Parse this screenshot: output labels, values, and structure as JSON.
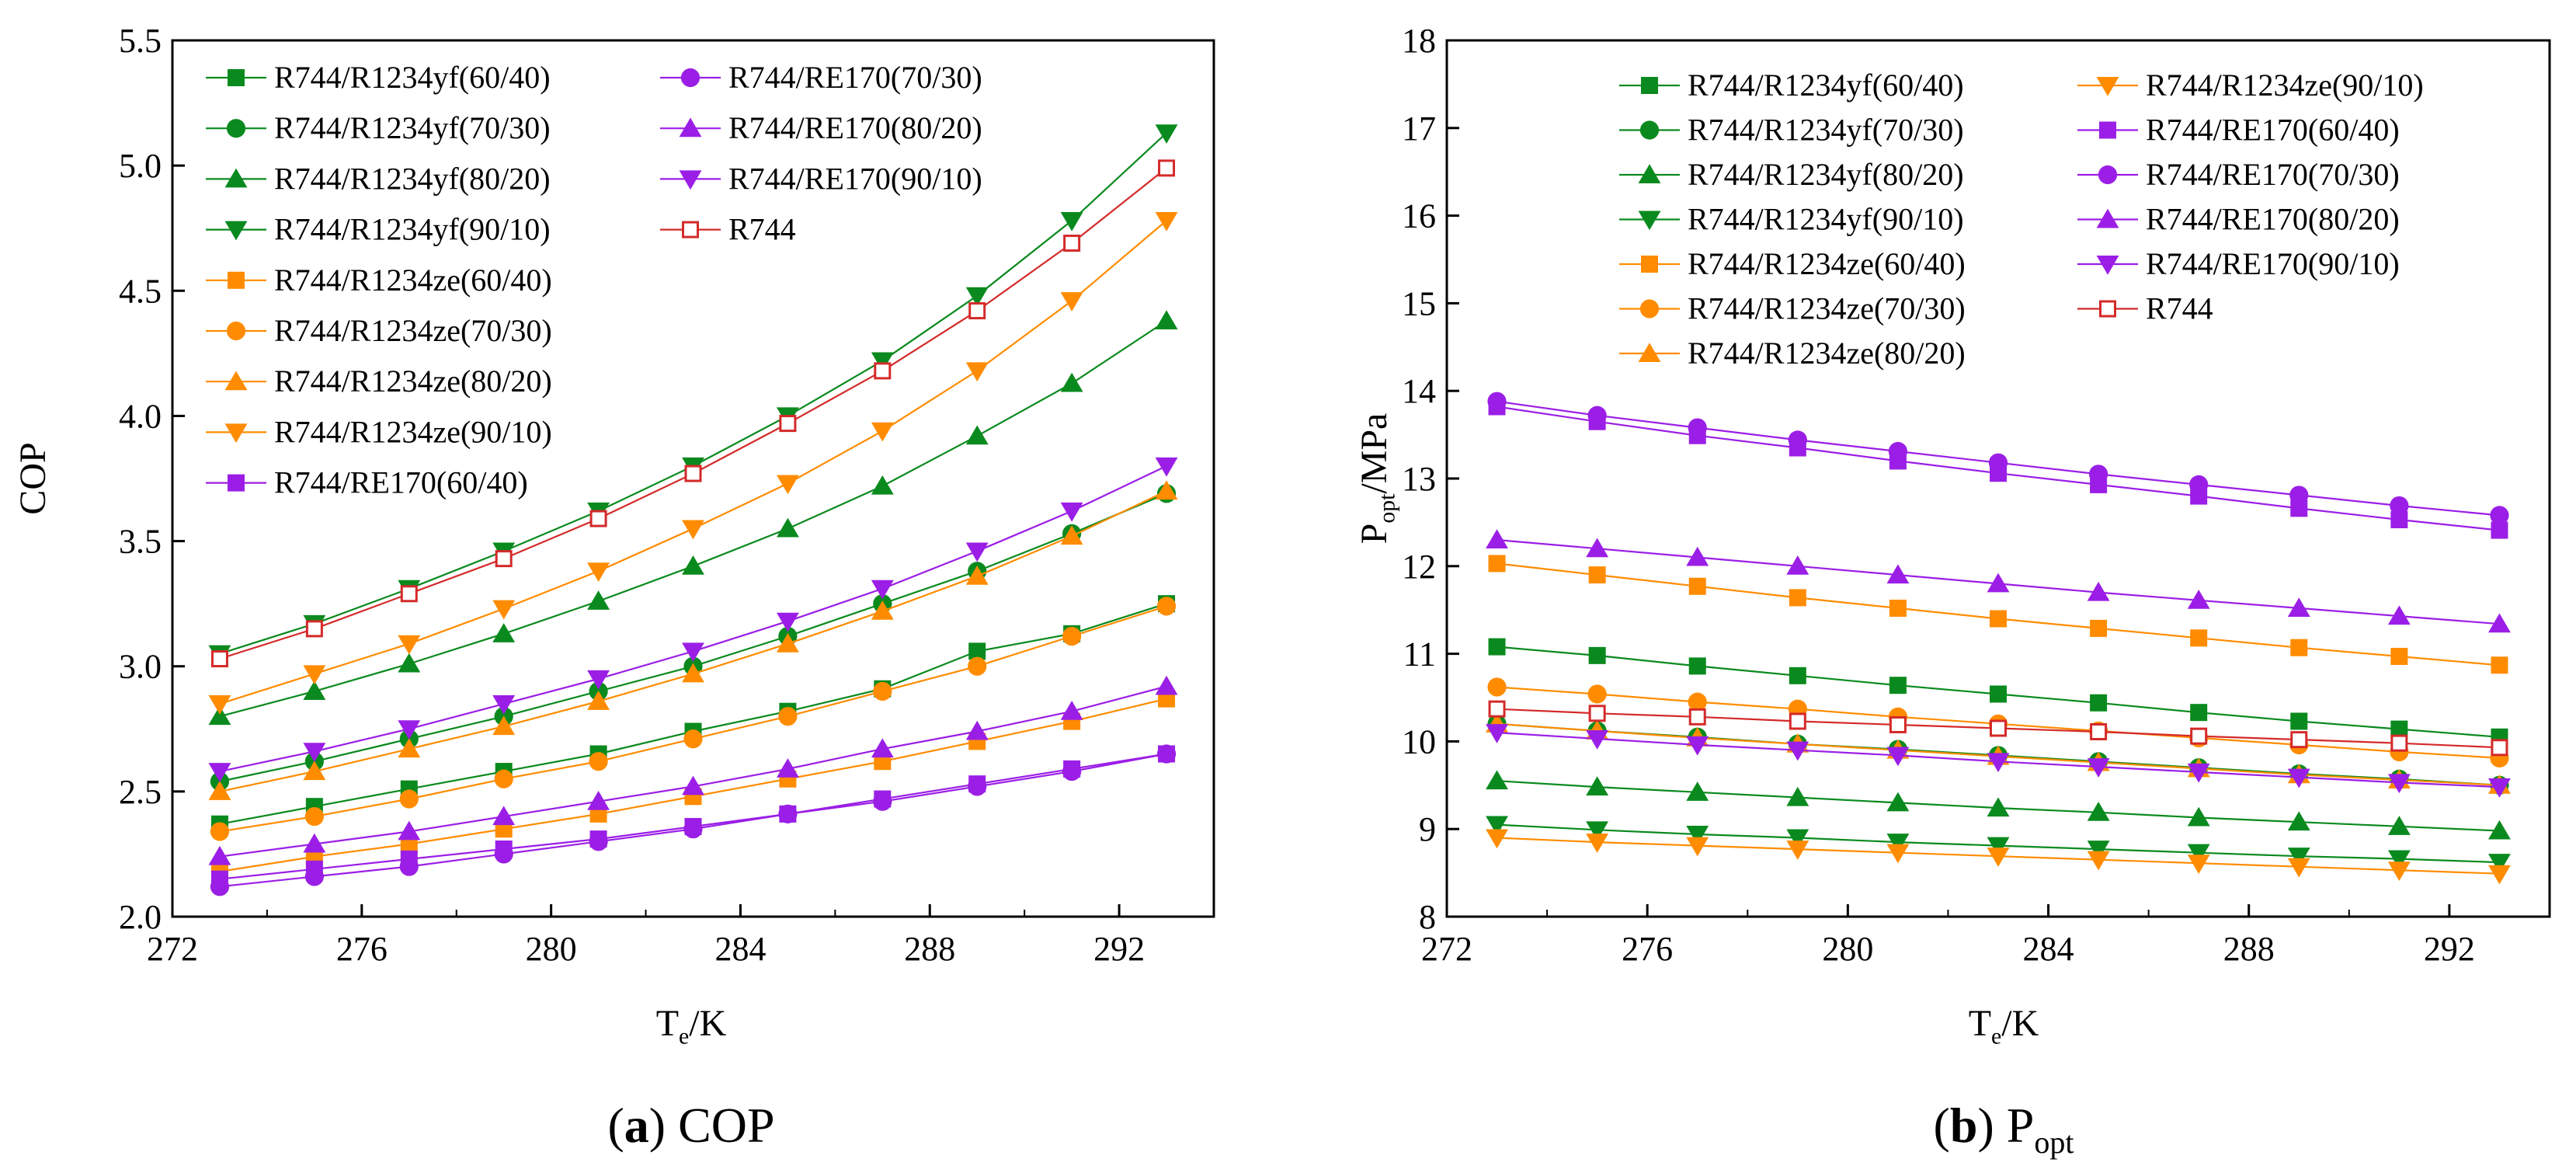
{
  "colors": {
    "yf": "#0a8a1e",
    "ze": "#ff8c00",
    "re": "#9b1ee6",
    "r744": "#d42a2a"
  },
  "chart_data": [
    {
      "type": "line",
      "panel": "a",
      "caption": {
        "label": "a",
        "text": "COP"
      },
      "xlabel": {
        "main": "T",
        "sub": "e",
        "rest": "/K"
      },
      "ylabel": {
        "main": "COP",
        "sub": "",
        "rest": ""
      },
      "xlim": [
        272,
        294
      ],
      "ylim": [
        2.0,
        5.5
      ],
      "xticks": [
        272,
        276,
        280,
        284,
        288,
        292
      ],
      "yticks": [
        2.0,
        2.5,
        3.0,
        3.5,
        4.0,
        4.5,
        5.0,
        5.5
      ],
      "ytick_decimals": 1,
      "legend_position": "top-left",
      "legend_columns": [
        [
          "R744/R1234yf(60/40)",
          "R744/R1234yf(70/30)",
          "R744/R1234yf(80/20)",
          "R744/R1234yf(90/10)",
          "R744/R1234ze(60/40)",
          "R744/R1234ze(70/30)",
          "R744/R1234ze(80/20)",
          "R744/R1234ze(90/10)",
          "R744/RE170(60/40)"
        ],
        [
          "R744/RE170(70/30)",
          "R744/RE170(80/20)",
          "R744/RE170(90/10)",
          "R744"
        ]
      ],
      "x": [
        273,
        275,
        277,
        279,
        281,
        283,
        285,
        287,
        289,
        291,
        293
      ],
      "series": [
        {
          "name": "R744/R1234yf(60/40)",
          "color": "yf",
          "marker": "square",
          "values": [
            2.37,
            2.44,
            2.51,
            2.58,
            2.65,
            2.74,
            2.82,
            2.91,
            3.06,
            3.13,
            3.25
          ]
        },
        {
          "name": "R744/R1234yf(70/30)",
          "color": "yf",
          "marker": "circle",
          "values": [
            2.54,
            2.62,
            2.71,
            2.8,
            2.9,
            3.0,
            3.12,
            3.25,
            3.38,
            3.53,
            3.69
          ]
        },
        {
          "name": "R744/R1234yf(80/20)",
          "color": "yf",
          "marker": "triangle-up",
          "values": [
            2.8,
            2.9,
            3.01,
            3.13,
            3.26,
            3.4,
            3.55,
            3.72,
            3.92,
            4.13,
            4.38
          ]
        },
        {
          "name": "R744/R1234yf(90/10)",
          "color": "yf",
          "marker": "triangle-down",
          "values": [
            3.05,
            3.17,
            3.31,
            3.46,
            3.62,
            3.8,
            4.0,
            4.22,
            4.48,
            4.78,
            5.13
          ]
        },
        {
          "name": "R744/R1234ze(60/40)",
          "color": "ze",
          "marker": "square",
          "values": [
            2.18,
            2.24,
            2.29,
            2.35,
            2.41,
            2.48,
            2.55,
            2.62,
            2.7,
            2.78,
            2.87
          ]
        },
        {
          "name": "R744/R1234ze(70/30)",
          "color": "ze",
          "marker": "circle",
          "values": [
            2.34,
            2.4,
            2.47,
            2.55,
            2.62,
            2.71,
            2.8,
            2.9,
            3.0,
            3.12,
            3.24
          ]
        },
        {
          "name": "R744/R1234ze(80/20)",
          "color": "ze",
          "marker": "triangle-up",
          "values": [
            2.5,
            2.58,
            2.67,
            2.76,
            2.86,
            2.97,
            3.09,
            3.22,
            3.36,
            3.52,
            3.7
          ]
        },
        {
          "name": "R744/R1234ze(90/10)",
          "color": "ze",
          "marker": "triangle-down",
          "values": [
            2.85,
            2.97,
            3.09,
            3.23,
            3.38,
            3.55,
            3.73,
            3.94,
            4.18,
            4.46,
            4.78
          ]
        },
        {
          "name": "R744/RE170(60/40)",
          "color": "re",
          "marker": "square",
          "values": [
            2.15,
            2.19,
            2.23,
            2.27,
            2.31,
            2.36,
            2.41,
            2.47,
            2.53,
            2.59,
            2.65
          ]
        },
        {
          "name": "R744/RE170(70/30)",
          "color": "re",
          "marker": "circle",
          "values": [
            2.12,
            2.16,
            2.2,
            2.25,
            2.3,
            2.35,
            2.41,
            2.46,
            2.52,
            2.58,
            2.65
          ]
        },
        {
          "name": "R744/RE170(80/20)",
          "color": "re",
          "marker": "triangle-up",
          "values": [
            2.24,
            2.29,
            2.34,
            2.4,
            2.46,
            2.52,
            2.59,
            2.67,
            2.74,
            2.82,
            2.92
          ]
        },
        {
          "name": "R744/RE170(90/10)",
          "color": "re",
          "marker": "triangle-down",
          "values": [
            2.58,
            2.66,
            2.75,
            2.85,
            2.95,
            3.06,
            3.18,
            3.31,
            3.46,
            3.62,
            3.8
          ]
        },
        {
          "name": "R744",
          "color": "r744",
          "marker": "open-square",
          "values": [
            3.03,
            3.15,
            3.29,
            3.43,
            3.59,
            3.77,
            3.97,
            4.18,
            4.42,
            4.69,
            4.99
          ]
        }
      ]
    },
    {
      "type": "line",
      "panel": "b",
      "caption": {
        "label": "b",
        "text": "P",
        "sub": "opt"
      },
      "xlabel": {
        "main": "T",
        "sub": "e",
        "rest": "/K"
      },
      "ylabel": {
        "main": "P",
        "sub": "opt",
        "rest": "/MPa"
      },
      "xlim": [
        272,
        294
      ],
      "ylim": [
        8,
        18
      ],
      "xticks": [
        272,
        276,
        280,
        284,
        288,
        292
      ],
      "yticks": [
        8,
        9,
        10,
        11,
        12,
        13,
        14,
        15,
        16,
        17,
        18
      ],
      "ytick_decimals": 0,
      "legend_position": "top-right",
      "legend_columns": [
        [
          "R744/R1234yf(60/40)",
          "R744/R1234yf(70/30)",
          "R744/R1234yf(80/20)",
          "R744/R1234yf(90/10)",
          "R744/R1234ze(60/40)",
          "R744/R1234ze(70/30)",
          "R744/R1234ze(80/20)"
        ],
        [
          "R744/R1234ze(90/10)",
          "R744/RE170(60/40)",
          "R744/RE170(70/30)",
          "R744/RE170(80/20)",
          "R744/RE170(90/10)",
          "R744"
        ]
      ],
      "x": [
        273,
        275,
        277,
        279,
        281,
        283,
        285,
        287,
        289,
        291,
        293
      ],
      "series": [
        {
          "name": "R744/R1234yf(60/40)",
          "color": "yf",
          "marker": "square",
          "values": [
            11.08,
            10.98,
            10.86,
            10.75,
            10.64,
            10.54,
            10.44,
            10.33,
            10.23,
            10.14,
            10.05
          ]
        },
        {
          "name": "R744/R1234yf(70/30)",
          "color": "yf",
          "marker": "circle",
          "values": [
            10.2,
            10.12,
            10.05,
            9.97,
            9.91,
            9.84,
            9.77,
            9.7,
            9.63,
            9.57,
            9.5
          ]
        },
        {
          "name": "R744/R1234yf(80/20)",
          "color": "yf",
          "marker": "triangle-up",
          "values": [
            9.55,
            9.48,
            9.42,
            9.36,
            9.3,
            9.24,
            9.19,
            9.13,
            9.08,
            9.03,
            8.98
          ]
        },
        {
          "name": "R744/R1234yf(90/10)",
          "color": "yf",
          "marker": "triangle-down",
          "values": [
            9.05,
            8.99,
            8.94,
            8.9,
            8.85,
            8.81,
            8.77,
            8.73,
            8.69,
            8.66,
            8.62
          ]
        },
        {
          "name": "R744/R1234ze(60/40)",
          "color": "ze",
          "marker": "square",
          "values": [
            12.03,
            11.9,
            11.77,
            11.64,
            11.52,
            11.4,
            11.29,
            11.18,
            11.07,
            10.97,
            10.87
          ]
        },
        {
          "name": "R744/R1234ze(70/30)",
          "color": "ze",
          "marker": "circle",
          "values": [
            10.62,
            10.54,
            10.45,
            10.37,
            10.28,
            10.2,
            10.12,
            10.04,
            9.96,
            9.88,
            9.81
          ]
        },
        {
          "name": "R744/R1234ze(80/20)",
          "color": "ze",
          "marker": "triangle-up",
          "values": [
            10.2,
            10.12,
            10.04,
            9.97,
            9.9,
            9.83,
            9.76,
            9.69,
            9.62,
            9.56,
            9.5
          ]
        },
        {
          "name": "R744/R1234ze(90/10)",
          "color": "ze",
          "marker": "triangle-down",
          "values": [
            8.9,
            8.85,
            8.81,
            8.77,
            8.73,
            8.69,
            8.65,
            8.61,
            8.57,
            8.53,
            8.49
          ]
        },
        {
          "name": "R744/RE170(60/40)",
          "color": "re",
          "marker": "square",
          "values": [
            13.82,
            13.65,
            13.49,
            13.35,
            13.2,
            13.06,
            12.93,
            12.8,
            12.66,
            12.53,
            12.41
          ]
        },
        {
          "name": "R744/RE170(70/30)",
          "color": "re",
          "marker": "circle",
          "values": [
            13.88,
            13.72,
            13.58,
            13.44,
            13.31,
            13.18,
            13.05,
            12.93,
            12.81,
            12.69,
            12.58
          ]
        },
        {
          "name": "R744/RE170(80/20)",
          "color": "re",
          "marker": "triangle-up",
          "values": [
            12.3,
            12.2,
            12.1,
            12.0,
            11.9,
            11.8,
            11.7,
            11.61,
            11.52,
            11.43,
            11.34
          ]
        },
        {
          "name": "R744/RE170(90/10)",
          "color": "re",
          "marker": "triangle-down",
          "values": [
            10.1,
            10.03,
            9.96,
            9.9,
            9.84,
            9.77,
            9.71,
            9.65,
            9.59,
            9.53,
            9.48
          ]
        },
        {
          "name": "R744",
          "color": "r744",
          "marker": "open-square",
          "values": [
            10.37,
            10.32,
            10.28,
            10.23,
            10.19,
            10.15,
            10.11,
            10.06,
            10.02,
            9.98,
            9.93
          ]
        }
      ]
    }
  ]
}
